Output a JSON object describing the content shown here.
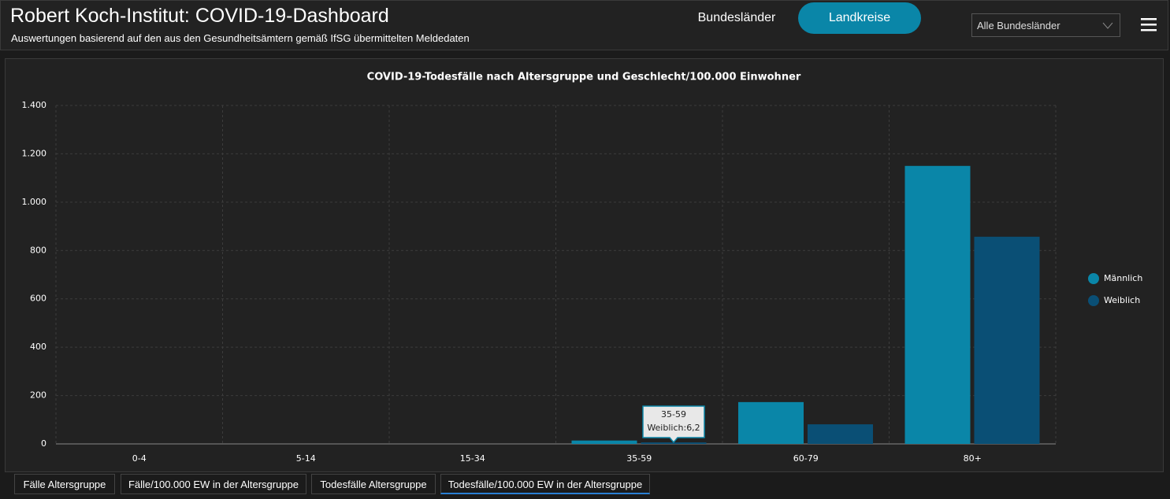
{
  "header": {
    "title": "Robert Koch-Institut: COVID-19-Dashboard",
    "subtitle": "Auswertungen basierend auf den aus den Gesundheitsämtern gemäß IfSG übermittelten Meldedaten"
  },
  "nav": [
    "Bundesländer",
    "Landkreise"
  ],
  "dropdown": "Alle Bundesländer",
  "tabs": [
    "Fälle Altersgruppe",
    "Fälle/100.000 EW in der Altersgruppe",
    "Todesfälle Altersgruppe",
    "Todesfälle/100.000 EW in der Altersgruppe"
  ],
  "chart_data": {
    "type": "bar",
    "title": "COVID-19-Todesfälle nach Altersgruppe und Geschlecht/100.000 Einwohner",
    "categories": [
      "0-4",
      "5-14",
      "15-34",
      "35-59",
      "60-79",
      "80+"
    ],
    "series": [
      {
        "name": "Männlich",
        "color": "#0a86a8",
        "values": [
          0,
          0,
          0,
          14,
          173,
          1150
        ]
      },
      {
        "name": "Weiblich",
        "color": "#0a4f75",
        "values": [
          0,
          0,
          0,
          6.2,
          81,
          857
        ]
      }
    ],
    "ylim": [
      0,
      1400
    ],
    "yticks": [
      0,
      200,
      400,
      600,
      800,
      {
        "value": 1000,
        "label": "1.000"
      },
      {
        "value": 1200,
        "label": "1.200"
      },
      {
        "value": 1400,
        "label": "1.400"
      }
    ],
    "grid": true,
    "legend": "right",
    "tooltip": "Weiblich:6,2"
  }
}
